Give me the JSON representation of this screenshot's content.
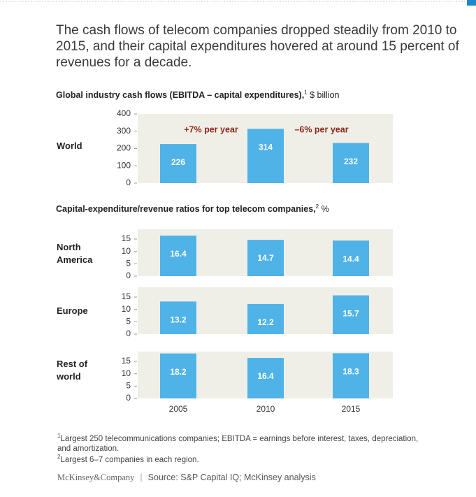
{
  "title": "The cash flows of telecom companies dropped steadily from 2010 to 2015, and their capital expenditures hovered at around 15 percent of revenues for a decade.",
  "chart_data": [
    {
      "type": "bar",
      "title": "Global industry cash flows (EBITDA – capital expenditures),",
      "title_note": "1",
      "unit": "$ billion",
      "label": "World",
      "values": [
        226,
        314,
        232
      ],
      "color": "#4fb3e8",
      "ylim": [
        0,
        400
      ],
      "yticks": [
        0,
        100,
        200,
        300,
        400
      ],
      "annotations": [
        "+7% per year",
        "–6% per year"
      ]
    },
    {
      "type": "bar",
      "title": "Capital-expenditure/revenue ratios for top telecom companies,",
      "title_note": "2",
      "unit": "%",
      "color": "#4fb3e8",
      "categories": [
        "2005",
        "2010",
        "2015"
      ],
      "panels": [
        {
          "label": "North America",
          "values": [
            16.4,
            14.7,
            14.4
          ],
          "ylim": [
            0,
            19
          ],
          "yticks": [
            0,
            5,
            10,
            15
          ]
        },
        {
          "label": "Europe",
          "values": [
            13.2,
            12.2,
            15.7
          ],
          "ylim": [
            0,
            19
          ],
          "yticks": [
            0,
            5,
            10,
            15
          ]
        },
        {
          "label": "Rest of world",
          "values": [
            18.2,
            16.4,
            18.3
          ],
          "ylim": [
            0,
            19
          ],
          "yticks": [
            0,
            5,
            10,
            15
          ]
        }
      ]
    }
  ],
  "footnotes": [
    {
      "marker": "1",
      "text": "Largest 250 telecommunications companies; EBITDA = earnings before interest, taxes, depreciation, and amortization."
    },
    {
      "marker": "2",
      "text": "Largest 6–7 companies in each region."
    }
  ],
  "footer": {
    "brand": "McKinsey&Company",
    "source": "Source: S&P Capital IQ; McKinsey analysis"
  }
}
